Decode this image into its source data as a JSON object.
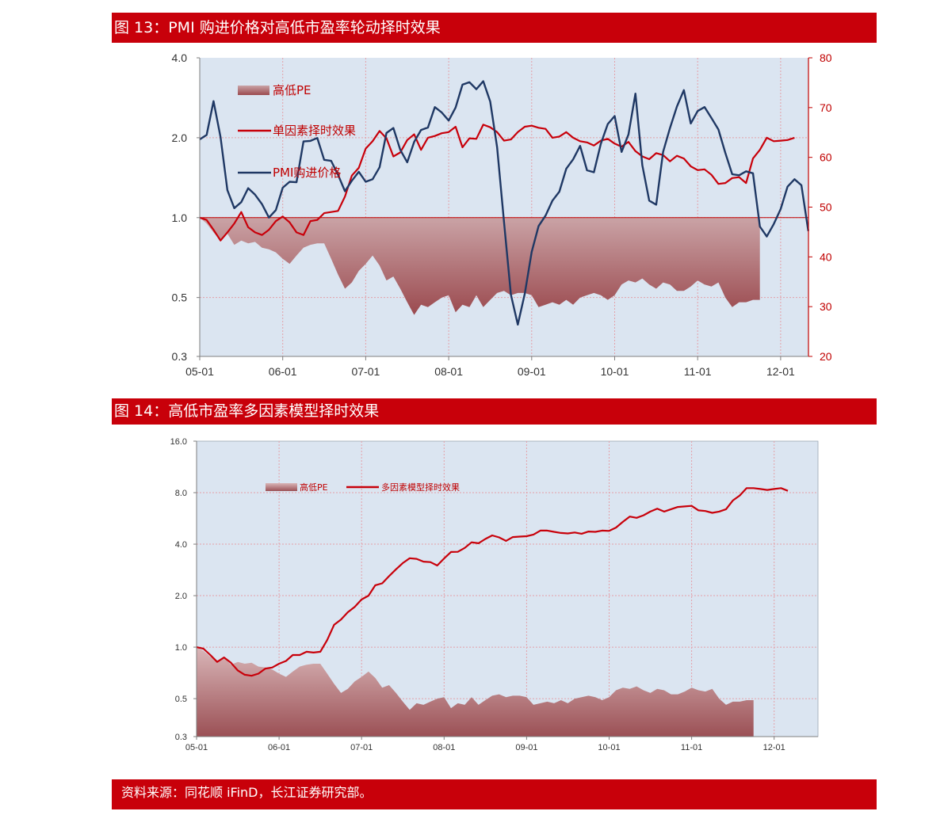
{
  "figure13": {
    "title": "图 13：PMI 购进价格对高低市盈率轮动择时效果"
  },
  "figure14": {
    "title": "图 14：高低市盈率多因素模型择时效果"
  },
  "footer": {
    "source": "资料来源：同花顺 iFinD，长江证券研究部。"
  },
  "colors": {
    "banner": "#c8000a",
    "plot_bg": "#dbe5f1",
    "red_line": "#c8000a",
    "navy_line": "#1f3864",
    "area_top": "#caa3a6",
    "area_bottom": "#9b4a4f",
    "axis_red": "#c00000"
  },
  "chart_data": [
    {
      "id": "chart1",
      "type": "line",
      "x_tick_labels": [
        "05-01",
        "06-01",
        "07-01",
        "08-01",
        "09-01",
        "10-01",
        "11-01",
        "12-01"
      ],
      "y_left": {
        "scale": "log",
        "ticks": [
          "4.0",
          "2.0",
          "1.0",
          "0.5",
          "0.3"
        ],
        "tick_values": [
          4,
          2,
          1,
          0.5,
          0.3
        ],
        "range": [
          0.3,
          4
        ]
      },
      "y_right": {
        "scale": "linear",
        "ticks": [
          "80",
          "70",
          "60",
          "50",
          "40",
          "30",
          "20"
        ],
        "tick_values": [
          80,
          70,
          60,
          50,
          40,
          30,
          20
        ],
        "range": [
          20,
          80
        ]
      },
      "legend": [
        "高低PE",
        "单因素择时效果",
        "PMI购进价格"
      ],
      "series": [
        {
          "name": "高低PE",
          "type": "area",
          "axis": "left",
          "values": [
            1.0,
            0.95,
            0.88,
            0.82,
            0.87,
            0.79,
            0.82,
            0.8,
            0.81,
            0.77,
            0.76,
            0.74,
            0.7,
            0.67,
            0.72,
            0.77,
            0.79,
            0.8,
            0.8,
            0.7,
            0.61,
            0.54,
            0.57,
            0.63,
            0.67,
            0.72,
            0.66,
            0.58,
            0.6,
            0.54,
            0.48,
            0.43,
            0.47,
            0.46,
            0.48,
            0.5,
            0.51,
            0.44,
            0.47,
            0.46,
            0.51,
            0.46,
            0.49,
            0.52,
            0.53,
            0.51,
            0.52,
            0.52,
            0.51,
            0.46,
            0.47,
            0.48,
            0.47,
            0.49,
            0.47,
            0.5,
            0.51,
            0.52,
            0.51,
            0.49,
            0.51,
            0.56,
            0.58,
            0.57,
            0.59,
            0.56,
            0.54,
            0.57,
            0.56,
            0.53,
            0.53,
            0.55,
            0.58,
            0.56,
            0.55,
            0.57,
            0.5,
            0.46,
            0.48,
            0.48,
            0.49,
            0.49
          ]
        },
        {
          "name": "单因素择时效果",
          "type": "line",
          "axis": "left",
          "values": [
            1.0,
            0.98,
            0.9,
            0.82,
            0.88,
            0.95,
            1.05,
            0.92,
            0.88,
            0.86,
            0.9,
            0.97,
            1.01,
            0.96,
            0.88,
            0.86,
            0.97,
            0.98,
            1.04,
            1.05,
            1.06,
            1.2,
            1.44,
            1.54,
            1.82,
            1.94,
            2.12,
            1.99,
            1.7,
            1.76,
            1.96,
            2.06,
            1.8,
            2.0,
            2.03,
            2.08,
            2.1,
            2.2,
            1.84,
            1.99,
            1.98,
            2.24,
            2.19,
            2.1,
            1.95,
            1.97,
            2.1,
            2.2,
            2.22,
            2.18,
            2.16,
            2.0,
            2.02,
            2.1,
            2.0,
            1.94,
            1.92,
            1.87,
            1.95,
            1.98,
            1.9,
            1.85,
            1.93,
            1.78,
            1.7,
            1.66,
            1.75,
            1.72,
            1.63,
            1.71,
            1.67,
            1.56,
            1.51,
            1.52,
            1.45,
            1.34,
            1.35,
            1.41,
            1.42,
            1.35,
            1.67,
            1.8,
            2.0,
            1.94,
            1.95,
            1.96,
            2.0
          ]
        },
        {
          "name": "PMI购进价格",
          "type": "line",
          "axis": "right",
          "values": [
            63.6,
            64.5,
            71.3,
            64.1,
            53.4,
            49.8,
            51.0,
            53.8,
            52.5,
            50.6,
            47.9,
            49.4,
            53.9,
            55.1,
            55.0,
            63.2,
            63.3,
            63.9,
            59.5,
            59.3,
            56.5,
            53.2,
            55.3,
            57.1,
            55.1,
            55.6,
            58.0,
            64.9,
            65.9,
            61.5,
            59.0,
            63.1,
            65.5,
            66.0,
            70.1,
            69.0,
            67.4,
            70.0,
            74.6,
            75.1,
            73.7,
            75.3,
            71.2,
            62.0,
            47.0,
            32.4,
            26.4,
            32.6,
            41.0,
            46.2,
            48.3,
            51.3,
            53.1,
            57.7,
            59.6,
            62.3,
            57.4,
            57.0,
            62.7,
            66.7,
            68.3,
            61.1,
            64.6,
            72.8,
            58.4,
            51.3,
            50.5,
            61.1,
            65.9,
            70.2,
            73.5,
            66.8,
            69.3,
            70.1,
            67.9,
            65.6,
            60.9,
            56.6,
            56.4,
            57.2,
            56.8,
            46.1,
            44.1,
            46.6,
            49.6,
            54.1,
            55.6,
            54.4,
            45.2
          ]
        }
      ]
    },
    {
      "id": "chart2",
      "type": "line",
      "x_tick_labels": [
        "05-01",
        "06-01",
        "07-01",
        "08-01",
        "09-01",
        "10-01",
        "11-01",
        "12-01"
      ],
      "y_left": {
        "scale": "log",
        "ticks": [
          "16.0",
          "8.0",
          "4.0",
          "2.0",
          "1.0",
          "0.5",
          "0.3"
        ],
        "tick_values": [
          16,
          8,
          4,
          2,
          1,
          0.5,
          0.3
        ],
        "range": [
          0.3,
          16
        ]
      },
      "legend": [
        "高低PE",
        "多因素模型择时效果"
      ],
      "series": [
        {
          "name": "高低PE",
          "type": "area",
          "values": [
            1.0,
            0.95,
            0.88,
            0.82,
            0.87,
            0.79,
            0.82,
            0.8,
            0.81,
            0.77,
            0.76,
            0.74,
            0.7,
            0.67,
            0.72,
            0.77,
            0.79,
            0.8,
            0.8,
            0.7,
            0.61,
            0.54,
            0.57,
            0.63,
            0.67,
            0.72,
            0.66,
            0.58,
            0.6,
            0.54,
            0.48,
            0.43,
            0.47,
            0.46,
            0.48,
            0.5,
            0.51,
            0.44,
            0.47,
            0.46,
            0.51,
            0.46,
            0.49,
            0.52,
            0.53,
            0.51,
            0.52,
            0.52,
            0.51,
            0.46,
            0.47,
            0.48,
            0.47,
            0.49,
            0.47,
            0.5,
            0.51,
            0.52,
            0.51,
            0.49,
            0.51,
            0.56,
            0.58,
            0.57,
            0.59,
            0.56,
            0.54,
            0.57,
            0.56,
            0.53,
            0.53,
            0.55,
            0.58,
            0.56,
            0.55,
            0.57,
            0.5,
            0.46,
            0.48,
            0.48,
            0.49,
            0.49
          ]
        },
        {
          "name": "多因素模型择时效果",
          "type": "line",
          "values": [
            1.0,
            0.98,
            0.9,
            0.82,
            0.87,
            0.81,
            0.73,
            0.69,
            0.68,
            0.7,
            0.75,
            0.76,
            0.8,
            0.83,
            0.9,
            0.9,
            0.94,
            0.93,
            0.94,
            1.1,
            1.35,
            1.45,
            1.6,
            1.72,
            1.9,
            2.0,
            2.3,
            2.36,
            2.6,
            2.85,
            3.1,
            3.31,
            3.28,
            3.16,
            3.14,
            3.0,
            3.3,
            3.6,
            3.61,
            3.8,
            4.1,
            4.05,
            4.29,
            4.5,
            4.38,
            4.18,
            4.4,
            4.43,
            4.45,
            4.55,
            4.8,
            4.8,
            4.72,
            4.65,
            4.62,
            4.68,
            4.6,
            4.74,
            4.72,
            4.8,
            4.78,
            5.0,
            5.4,
            5.8,
            5.7,
            5.9,
            6.2,
            6.45,
            6.2,
            6.4,
            6.6,
            6.65,
            6.7,
            6.3,
            6.25,
            6.1,
            6.2,
            6.4,
            7.2,
            7.7,
            8.5,
            8.5,
            8.4,
            8.3,
            8.4,
            8.5,
            8.2
          ]
        }
      ]
    }
  ]
}
